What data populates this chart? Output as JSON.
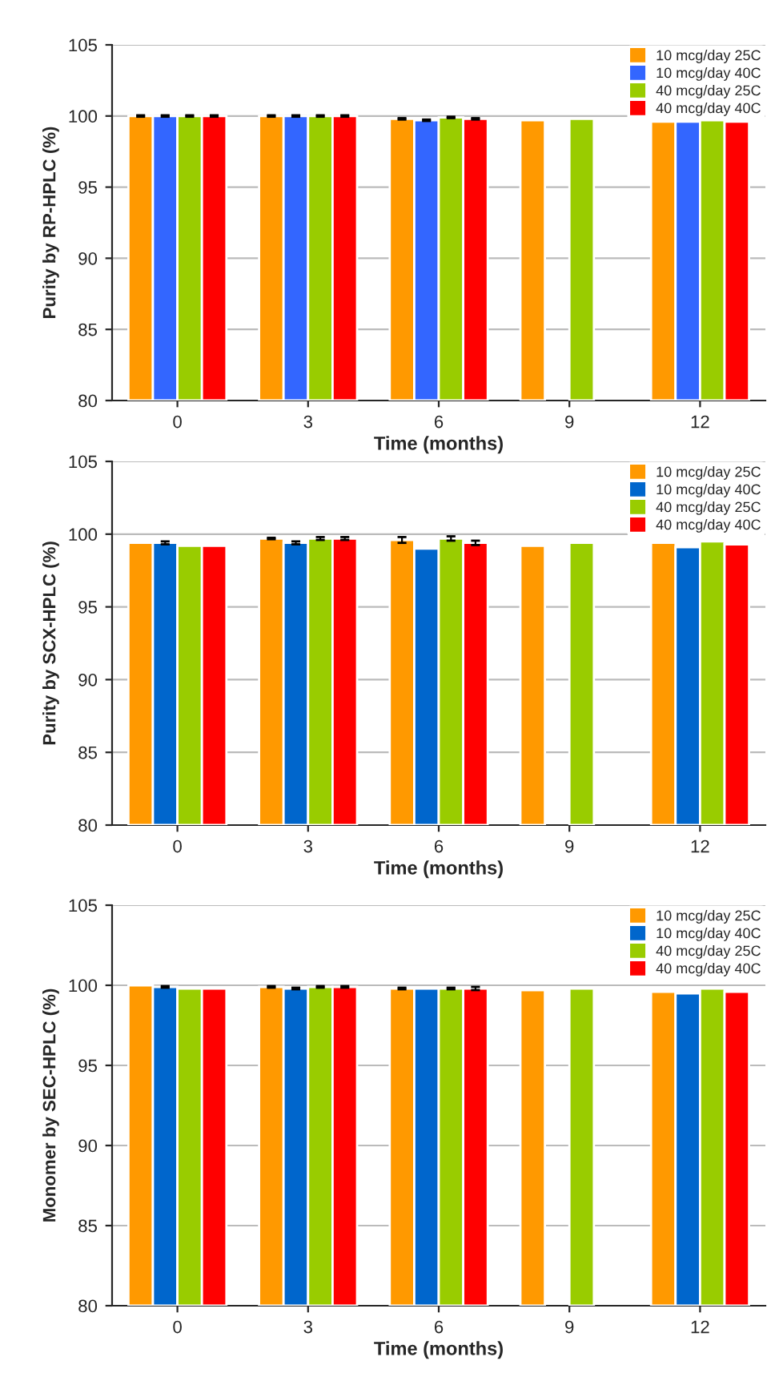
{
  "chart_data": [
    {
      "type": "bar",
      "xlabel": "Time (months)",
      "ylabel": "Purity by RP-HPLC (%)",
      "categories": [
        "0",
        "3",
        "6",
        "9",
        "12"
      ],
      "ylim": [
        80,
        105
      ],
      "yticks": [
        80,
        85,
        90,
        95,
        100,
        105
      ],
      "grid": "y",
      "legend": "top right",
      "series": [
        {
          "name": "10 mcg/day 25C",
          "color": "#ff9900",
          "values": [
            100,
            100,
            99.8,
            99.7,
            99.6
          ],
          "errors": [
            0.05,
            0.05,
            0.05,
            null,
            null
          ]
        },
        {
          "name": "10 mcg/day 40C",
          "color": "#3366ff",
          "values": [
            100,
            100,
            99.7,
            null,
            99.6
          ],
          "errors": [
            0.05,
            0.05,
            0.05,
            null,
            null
          ]
        },
        {
          "name": "40 mcg/day 25C",
          "color": "#99cc00",
          "values": [
            100,
            100,
            99.9,
            99.8,
            99.7
          ],
          "errors": [
            0.05,
            0.05,
            0.05,
            null,
            null
          ]
        },
        {
          "name": "40 mcg/day 40C",
          "color": "#ff0000",
          "values": [
            100,
            100,
            99.8,
            null,
            99.6
          ],
          "errors": [
            0.05,
            0.05,
            0.05,
            null,
            null
          ]
        }
      ]
    },
    {
      "type": "bar",
      "xlabel": "Time (months)",
      "ylabel": "Purity by SCX-HPLC (%)",
      "categories": [
        "0",
        "3",
        "6",
        "9",
        "12"
      ],
      "ylim": [
        80,
        105
      ],
      "yticks": [
        80,
        85,
        90,
        95,
        100,
        105
      ],
      "grid": "y",
      "legend": "top right",
      "series": [
        {
          "name": "10 mcg/day 25C",
          "color": "#ff9900",
          "values": [
            99.4,
            99.7,
            99.6,
            99.2,
            99.4
          ],
          "errors": [
            null,
            0.05,
            0.2,
            null,
            null
          ]
        },
        {
          "name": "10 mcg/day 40C",
          "color": "#0066cc",
          "values": [
            99.4,
            99.4,
            99.0,
            null,
            99.1
          ],
          "errors": [
            0.1,
            0.1,
            null,
            null,
            null
          ]
        },
        {
          "name": "40 mcg/day 25C",
          "color": "#99cc00",
          "values": [
            99.2,
            99.7,
            99.7,
            99.4,
            99.5
          ],
          "errors": [
            null,
            0.1,
            0.15,
            null,
            null
          ]
        },
        {
          "name": "40 mcg/day 40C",
          "color": "#ff0000",
          "values": [
            99.2,
            99.7,
            99.4,
            null,
            99.3
          ],
          "errors": [
            null,
            0.1,
            0.15,
            null,
            null
          ]
        }
      ]
    },
    {
      "type": "bar",
      "xlabel": "Time (months)",
      "ylabel": "Monomer by SEC-HPLC (%)",
      "categories": [
        "0",
        "3",
        "6",
        "9",
        "12"
      ],
      "ylim": [
        80,
        105
      ],
      "yticks": [
        80,
        85,
        90,
        95,
        100,
        105
      ],
      "grid": "y",
      "legend": "top right",
      "series": [
        {
          "name": "10 mcg/day 25C",
          "color": "#ff9900",
          "values": [
            100,
            99.9,
            99.8,
            99.7,
            99.6
          ],
          "errors": [
            null,
            0.05,
            0.05,
            null,
            null
          ]
        },
        {
          "name": "10 mcg/day 40C",
          "color": "#0066cc",
          "values": [
            99.9,
            99.8,
            99.8,
            null,
            99.5
          ],
          "errors": [
            0.05,
            0.05,
            null,
            null,
            null
          ]
        },
        {
          "name": "40 mcg/day 25C",
          "color": "#99cc00",
          "values": [
            99.8,
            99.9,
            99.8,
            99.8,
            99.8
          ],
          "errors": [
            null,
            0.05,
            0.05,
            null,
            null
          ]
        },
        {
          "name": "40 mcg/day 40C",
          "color": "#ff0000",
          "values": [
            99.8,
            99.9,
            99.8,
            null,
            99.6
          ],
          "errors": [
            null,
            0.05,
            0.1,
            null,
            null
          ]
        }
      ]
    }
  ]
}
